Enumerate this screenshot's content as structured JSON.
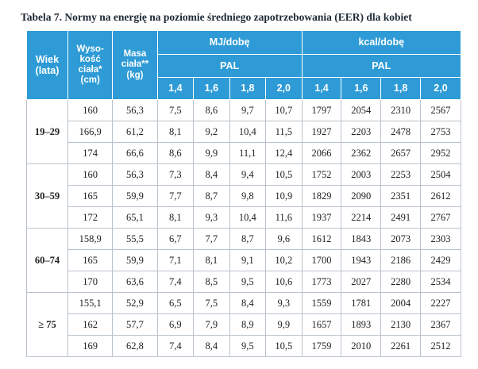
{
  "caption": "Tabela 7. Normy na energię na poziomie średniego zapotrzebowania (EER) dla kobiet",
  "headers": {
    "wiek": "Wiek (lata)",
    "wzrost": "Wyso-kość ciała* (cm)",
    "masa": "Masa ciała** (kg)",
    "mj": "MJ/dobę",
    "kcal": "kcal/dobę",
    "pal": "PAL",
    "pal_levels": [
      "1,4",
      "1,6",
      "1,8",
      "2,0"
    ]
  },
  "groups": [
    {
      "age": "19–29",
      "rows": [
        {
          "height": "160",
          "mass": "56,3",
          "mj": [
            "7,5",
            "8,6",
            "9,7",
            "10,7"
          ],
          "kcal": [
            "1797",
            "2054",
            "2310",
            "2567"
          ]
        },
        {
          "height": "166,9",
          "mass": "61,2",
          "mj": [
            "8,1",
            "9,2",
            "10,4",
            "11,5"
          ],
          "kcal": [
            "1927",
            "2203",
            "2478",
            "2753"
          ]
        },
        {
          "height": "174",
          "mass": "66,6",
          "mj": [
            "8,6",
            "9,9",
            "11,1",
            "12,4"
          ],
          "kcal": [
            "2066",
            "2362",
            "2657",
            "2952"
          ]
        }
      ]
    },
    {
      "age": "30–59",
      "rows": [
        {
          "height": "160",
          "mass": "56,3",
          "mj": [
            "7,3",
            "8,4",
            "9,4",
            "10,5"
          ],
          "kcal": [
            "1752",
            "2003",
            "2253",
            "2504"
          ]
        },
        {
          "height": "165",
          "mass": "59,9",
          "mj": [
            "7,7",
            "8,7",
            "9,8",
            "10,9"
          ],
          "kcal": [
            "1829",
            "2090",
            "2351",
            "2612"
          ]
        },
        {
          "height": "172",
          "mass": "65,1",
          "mj": [
            "8,1",
            "9,3",
            "10,4",
            "11,6"
          ],
          "kcal": [
            "1937",
            "2214",
            "2491",
            "2767"
          ]
        }
      ]
    },
    {
      "age": "60–74",
      "rows": [
        {
          "height": "158,9",
          "mass": "55,5",
          "mj": [
            "6,7",
            "7,7",
            "8,7",
            "9,6"
          ],
          "kcal": [
            "1612",
            "1843",
            "2073",
            "2303"
          ]
        },
        {
          "height": "165",
          "mass": "59,9",
          "mj": [
            "7,1",
            "8,1",
            "9,1",
            "10,2"
          ],
          "kcal": [
            "1700",
            "1943",
            "2186",
            "2429"
          ]
        },
        {
          "height": "170",
          "mass": "63,6",
          "mj": [
            "7,4",
            "8,5",
            "9,5",
            "10,6"
          ],
          "kcal": [
            "1773",
            "2027",
            "2280",
            "2534"
          ]
        }
      ]
    },
    {
      "age": "≥ 75",
      "rows": [
        {
          "height": "155,1",
          "mass": "52,9",
          "mj": [
            "6,5",
            "7,5",
            "8,4",
            "9,3"
          ],
          "kcal": [
            "1559",
            "1781",
            "2004",
            "2227"
          ]
        },
        {
          "height": "162",
          "mass": "57,7",
          "mj": [
            "6,9",
            "7,9",
            "8,9",
            "9,9"
          ],
          "kcal": [
            "1657",
            "1893",
            "2130",
            "2367"
          ]
        },
        {
          "height": "169",
          "mass": "62,8",
          "mj": [
            "7,4",
            "8,4",
            "9,5",
            "10,5"
          ],
          "kcal": [
            "1759",
            "2010",
            "2261",
            "2512"
          ]
        }
      ]
    }
  ]
}
